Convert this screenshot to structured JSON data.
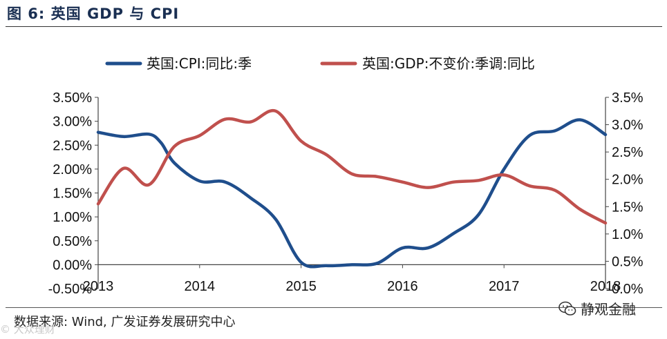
{
  "header": {
    "title": "图 6: 英国 GDP 与 CPI"
  },
  "footer": {
    "source": "数据来源: Wind, 广发证券发展研究中心",
    "watermark_left": "© 大众理财",
    "watermark_right": "静观金融"
  },
  "chart_data": {
    "type": "line",
    "title": "英国 GDP 与 CPI",
    "x_ticks": [
      "2013",
      "2014",
      "2015",
      "2016",
      "2017",
      "2018"
    ],
    "x_range": [
      2013.0,
      2018.0
    ],
    "left_axis": {
      "range": [
        -0.5,
        3.5
      ],
      "ticks": [
        "-0.50%",
        "0.00%",
        "0.50%",
        "1.00%",
        "1.50%",
        "2.00%",
        "2.50%",
        "3.00%",
        "3.50%"
      ],
      "tick_values": [
        -0.5,
        0.0,
        0.5,
        1.0,
        1.5,
        2.0,
        2.5,
        3.0,
        3.5
      ]
    },
    "right_axis": {
      "range": [
        0.0,
        3.5
      ],
      "ticks": [
        "0.0%",
        "0.5%",
        "1.0%",
        "1.5%",
        "2.0%",
        "2.5%",
        "3.0%",
        "3.5%"
      ],
      "tick_values": [
        0.0,
        0.5,
        1.0,
        1.5,
        2.0,
        2.5,
        3.0,
        3.5
      ]
    },
    "series": [
      {
        "name": "英国:CPI:同比:季",
        "axis": "left",
        "color": "#1f4e8c",
        "points": [
          [
            2013.0,
            2.77
          ],
          [
            2013.25,
            2.68
          ],
          [
            2013.5,
            2.73
          ],
          [
            2013.62,
            2.55
          ],
          [
            2013.75,
            2.13
          ],
          [
            2014.0,
            1.75
          ],
          [
            2014.25,
            1.73
          ],
          [
            2014.5,
            1.4
          ],
          [
            2014.75,
            0.95
          ],
          [
            2015.0,
            0.05
          ],
          [
            2015.25,
            -0.02
          ],
          [
            2015.5,
            0.0
          ],
          [
            2015.75,
            0.03
          ],
          [
            2016.0,
            0.35
          ],
          [
            2016.25,
            0.35
          ],
          [
            2016.5,
            0.65
          ],
          [
            2016.75,
            1.05
          ],
          [
            2017.0,
            2.0
          ],
          [
            2017.25,
            2.7
          ],
          [
            2017.5,
            2.8
          ],
          [
            2017.75,
            3.03
          ],
          [
            2018.0,
            2.72
          ]
        ]
      },
      {
        "name": "英国:GDP:不变价:季调:同比",
        "axis": "right",
        "color": "#c0504d",
        "points": [
          [
            2013.0,
            1.55
          ],
          [
            2013.25,
            2.2
          ],
          [
            2013.5,
            1.9
          ],
          [
            2013.75,
            2.6
          ],
          [
            2014.0,
            2.8
          ],
          [
            2014.25,
            3.1
          ],
          [
            2014.5,
            3.05
          ],
          [
            2014.75,
            3.25
          ],
          [
            2015.0,
            2.7
          ],
          [
            2015.25,
            2.45
          ],
          [
            2015.5,
            2.1
          ],
          [
            2015.75,
            2.05
          ],
          [
            2016.0,
            1.95
          ],
          [
            2016.25,
            1.85
          ],
          [
            2016.5,
            1.95
          ],
          [
            2016.75,
            1.98
          ],
          [
            2017.0,
            2.08
          ],
          [
            2017.25,
            1.88
          ],
          [
            2017.5,
            1.8
          ],
          [
            2017.75,
            1.45
          ],
          [
            2018.0,
            1.2
          ]
        ]
      }
    ],
    "legend_position": "top"
  }
}
